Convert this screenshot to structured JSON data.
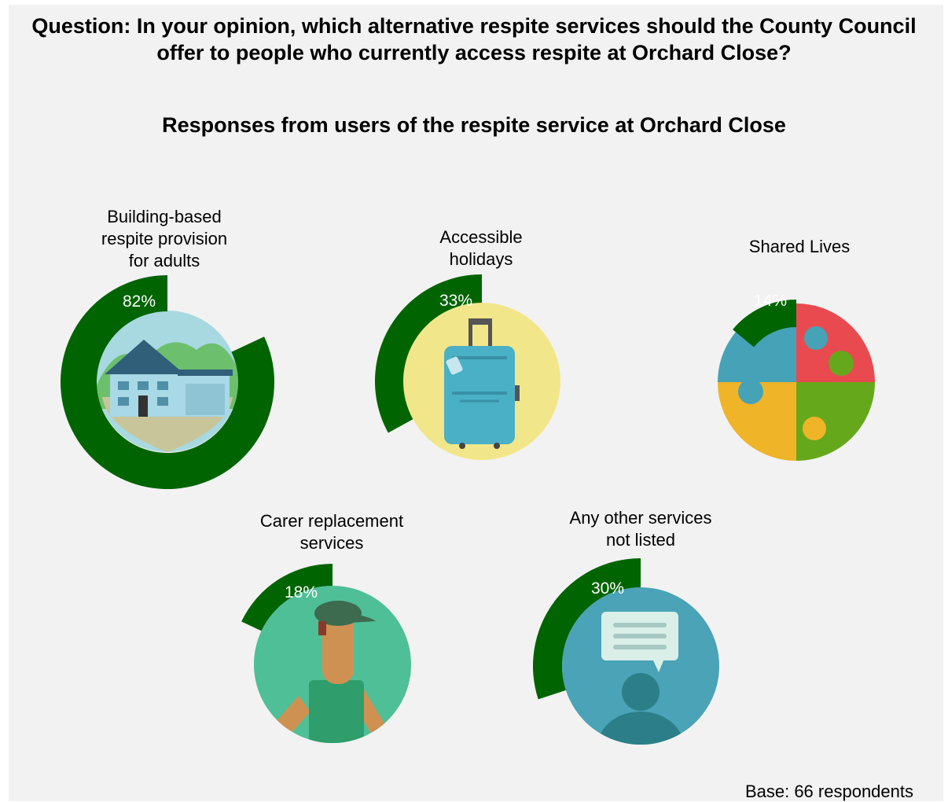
{
  "chart_data": {
    "type": "donut",
    "title": "Question: In your opinion, which alternative respite services should the County Council offer to people who currently access respite at Orchard Close?",
    "subtitle": "Responses from users of the respite service at Orchard Close",
    "items": [
      {
        "label_lines": [
          "Building-based",
          "respite provision",
          "for adults"
        ],
        "value": 82,
        "value_label": "82%",
        "icon": "house-icon"
      },
      {
        "label_lines": [
          "Accessible",
          "holidays"
        ],
        "value": 33,
        "value_label": "33%",
        "icon": "suitcase-icon"
      },
      {
        "label_lines": [
          "Shared Lives"
        ],
        "value": 14,
        "value_label": "14%",
        "icon": "puzzle-icon"
      },
      {
        "label_lines": [
          "Carer replacement",
          "services"
        ],
        "value": 18,
        "value_label": "18%",
        "icon": "carer-icon"
      },
      {
        "label_lines": [
          "Any other services",
          "not listed"
        ],
        "value": 30,
        "value_label": "30%",
        "icon": "speech-person-icon"
      }
    ],
    "base_note": "Base: 66 respondents"
  },
  "colors": {
    "ring": "#006400",
    "background": "#f2f2f2"
  }
}
